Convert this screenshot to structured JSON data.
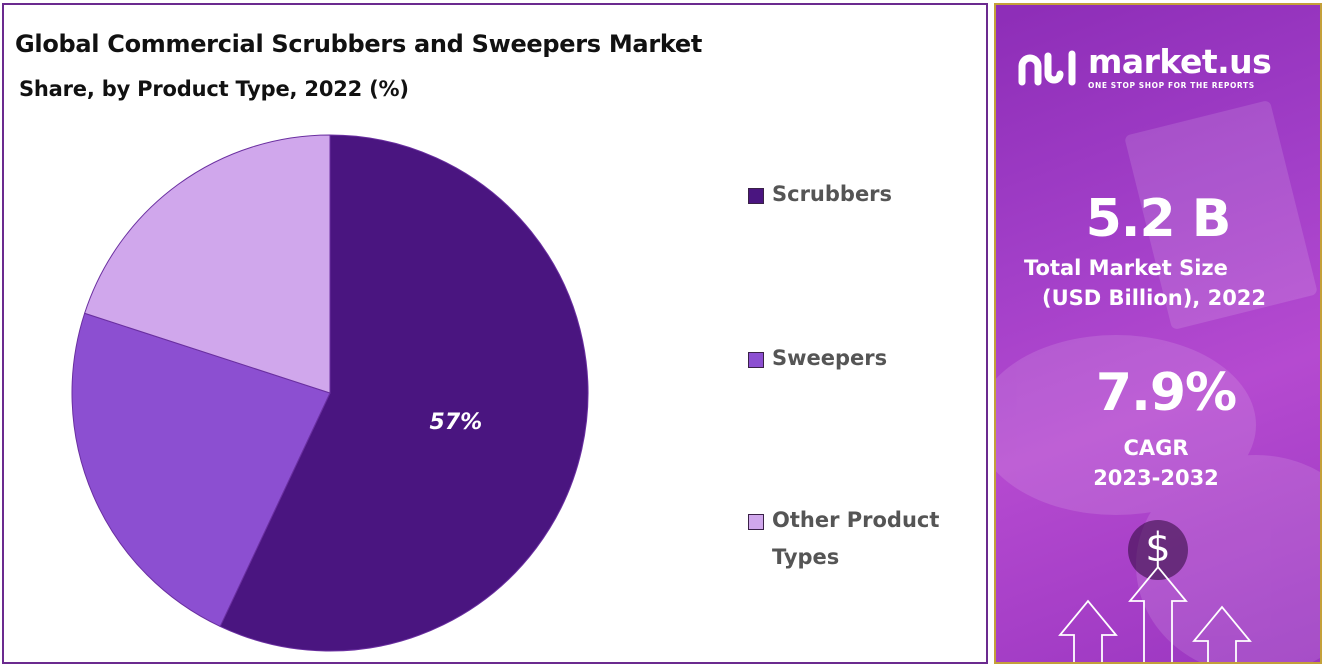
{
  "chart_data": {
    "type": "pie",
    "title": "Global Commercial Scrubbers and Sweepers Market",
    "subtitle": "Share, by Product Type, 2022 (%)",
    "categories": [
      "Scrubbers",
      "Sweepers",
      "Other Product Types"
    ],
    "values": [
      57,
      23,
      20
    ],
    "data_labels": [
      "57%",
      "",
      ""
    ],
    "colors": [
      "#4a1580",
      "#8c4fd1",
      "#d0a7ec"
    ],
    "legend_placement": "right"
  },
  "side_panel": {
    "brand_name": "market.us",
    "brand_tagline": "ONE STOP SHOP FOR THE REPORTS",
    "market_size_value": "5.2 B",
    "market_size_label_line1": "Total Market Size",
    "market_size_label_line2": "(USD Billion), 2022",
    "cagr_value": "7.9%",
    "cagr_label": "CAGR",
    "cagr_period": "2023-2032",
    "dollar_symbol": "$",
    "icons": [
      "logo-icon",
      "dollar-icon",
      "up-arrow-icon"
    ]
  }
}
